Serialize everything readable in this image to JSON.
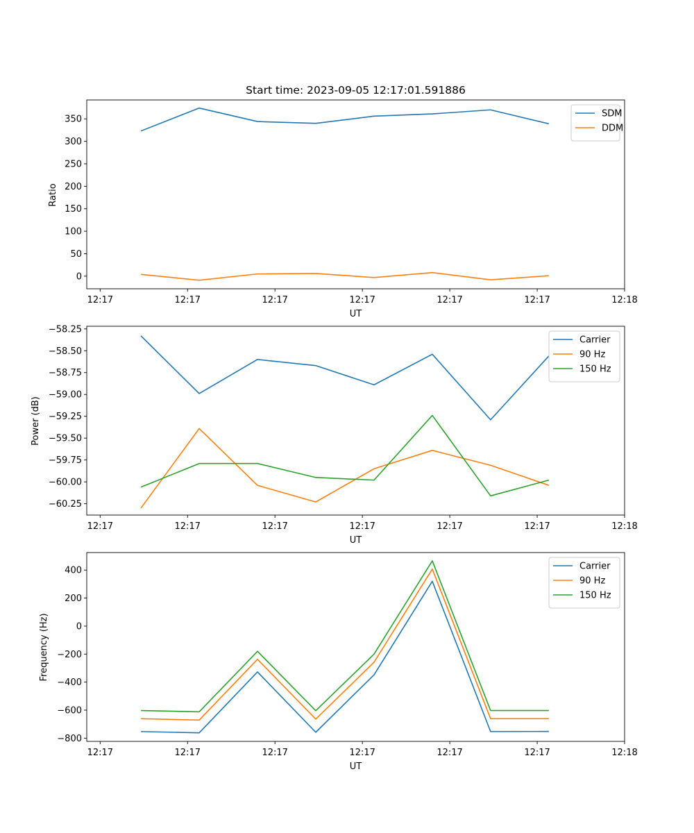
{
  "chart_data": [
    {
      "type": "line",
      "title": "Start time: 2023-09-05 12:17:01.591886",
      "xlabel": "UT",
      "ylabel": "Ratio",
      "x_tick_labels": [
        "12:17",
        "12:17",
        "12:17",
        "12:17",
        "12:17",
        "12:17",
        "12:18"
      ],
      "x_tick_index": [
        0,
        1.5,
        3,
        4.5,
        6,
        7.5,
        9
      ],
      "xlim": [
        -0.23,
        9.0
      ],
      "x": [
        0.7,
        1.7,
        2.7,
        3.7,
        4.7,
        5.7,
        6.7,
        7.7
      ],
      "ylim": [
        -28,
        392
      ],
      "y_ticks": [
        0,
        50,
        100,
        150,
        200,
        250,
        300,
        350
      ],
      "y_tick_labels": [
        "0",
        "50",
        "100",
        "150",
        "200",
        "250",
        "300",
        "350"
      ],
      "legend_position": "top-right",
      "series": [
        {
          "name": "SDM",
          "color": "#1f77b4",
          "values": [
            323,
            374,
            344,
            340,
            356,
            361,
            370,
            339
          ]
        },
        {
          "name": "DDM",
          "color": "#ff7f0e",
          "values": [
            4,
            -9,
            5,
            6,
            -3,
            8,
            -8,
            1
          ]
        }
      ]
    },
    {
      "type": "line",
      "title": "",
      "xlabel": "UT",
      "ylabel": "Power (dB)",
      "x_tick_labels": [
        "12:17",
        "12:17",
        "12:17",
        "12:17",
        "12:17",
        "12:17",
        "12:18"
      ],
      "x_tick_index": [
        0,
        1.5,
        3,
        4.5,
        6,
        7.5,
        9
      ],
      "xlim": [
        -0.23,
        9.0
      ],
      "x": [
        0.7,
        1.7,
        2.7,
        3.7,
        4.7,
        5.7,
        6.7,
        7.7
      ],
      "ylim": [
        -60.38,
        -58.22
      ],
      "y_ticks": [
        -58.25,
        -58.5,
        -58.75,
        -59.0,
        -59.25,
        -59.5,
        -59.75,
        -60.0,
        -60.25
      ],
      "y_tick_labels": [
        "−58.25",
        "−58.50",
        "−58.75",
        "−59.00",
        "−59.25",
        "−59.50",
        "−59.75",
        "−60.00",
        "−60.25"
      ],
      "legend_position": "top-right",
      "series": [
        {
          "name": "Carrier",
          "color": "#1f77b4",
          "values": [
            -58.33,
            -58.99,
            -58.6,
            -58.67,
            -58.89,
            -58.54,
            -59.29,
            -58.56
          ]
        },
        {
          "name": "90 Hz",
          "color": "#ff7f0e",
          "values": [
            -60.3,
            -59.39,
            -60.04,
            -60.23,
            -59.85,
            -59.64,
            -59.81,
            -60.04
          ]
        },
        {
          "name": "150 Hz",
          "color": "#2ca02c",
          "values": [
            -60.06,
            -59.79,
            -59.79,
            -59.95,
            -59.98,
            -59.24,
            -60.16,
            -59.98
          ]
        }
      ]
    },
    {
      "type": "line",
      "title": "",
      "xlabel": "UT",
      "ylabel": "Frequency (Hz)",
      "x_tick_labels": [
        "12:17",
        "12:17",
        "12:17",
        "12:17",
        "12:17",
        "12:17",
        "12:18"
      ],
      "x_tick_index": [
        0,
        1.5,
        3,
        4.5,
        6,
        7.5,
        9
      ],
      "xlim": [
        -0.23,
        9.0
      ],
      "x": [
        0.7,
        1.7,
        2.7,
        3.7,
        4.7,
        5.7,
        6.7,
        7.7
      ],
      "ylim": [
        -823,
        525
      ],
      "y_ticks": [
        -800,
        -600,
        -400,
        -200,
        0,
        200,
        400
      ],
      "y_tick_labels": [
        "−800",
        "−600",
        "−400",
        "−200",
        "0",
        "200",
        "400"
      ],
      "legend_position": "top-right",
      "series": [
        {
          "name": "Carrier",
          "color": "#1f77b4",
          "values": [
            -753,
            -762,
            -327,
            -758,
            -348,
            320,
            -753,
            -752
          ]
        },
        {
          "name": "90 Hz",
          "color": "#ff7f0e",
          "values": [
            -661,
            -671,
            -237,
            -664,
            -258,
            407,
            -661,
            -661
          ]
        },
        {
          "name": "150 Hz",
          "color": "#2ca02c",
          "values": [
            -603,
            -612,
            -180,
            -604,
            -200,
            466,
            -603,
            -603
          ]
        }
      ]
    }
  ]
}
